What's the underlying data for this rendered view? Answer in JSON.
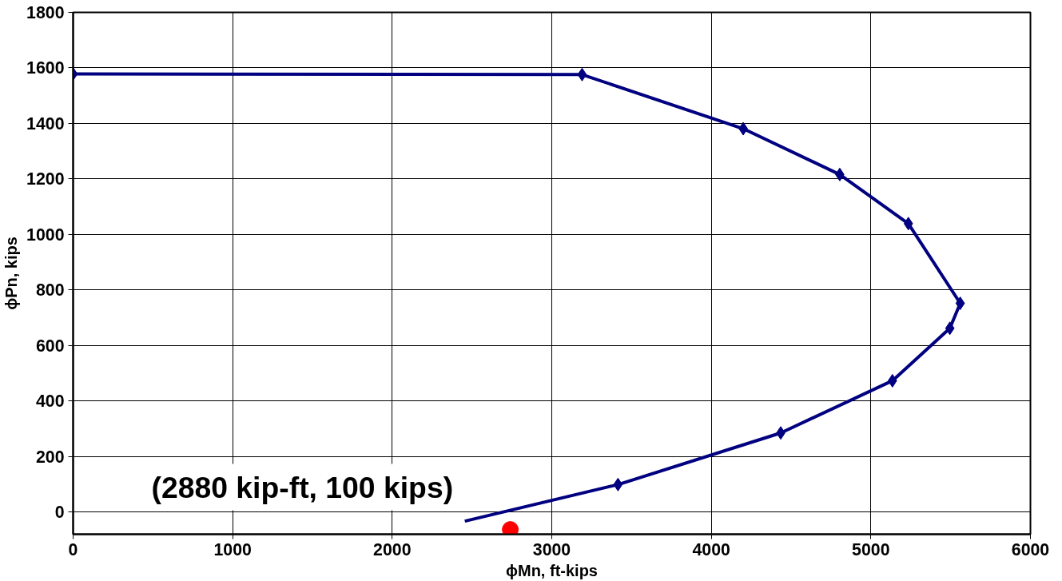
{
  "chart_data": {
    "type": "line",
    "xlabel": "ϕMn, ft-kips",
    "ylabel": "ϕPn, kips",
    "xlim": [
      0,
      6000
    ],
    "xticks": [
      0,
      1000,
      2000,
      3000,
      4000,
      5000,
      6000
    ],
    "ylim": [
      -80,
      1800
    ],
    "yticks": [
      0,
      200,
      400,
      600,
      800,
      1000,
      1200,
      1400,
      1600,
      1800
    ],
    "grid": true,
    "line_style": "solid",
    "series": [
      {
        "marker": "diamond",
        "color": "#000080",
        "x": [
          0,
          3190,
          4200,
          4805,
          5235,
          5560,
          5495,
          5135,
          4435,
          3415
        ],
        "values": [
          1578,
          1576,
          1381,
          1216,
          1039,
          752,
          662,
          473,
          285,
          99
        ]
      },
      {
        "marker": "none",
        "color": "#000080",
        "x": [
          3415,
          2455
        ],
        "values": [
          99,
          -33
        ]
      },
      {
        "type": "scatter",
        "marker": "circle",
        "color": "#ff0000",
        "x": [
          2740
        ],
        "values": [
          -63
        ]
      }
    ],
    "annotations": [
      "(2880 kip-ft, 100 kips)"
    ]
  }
}
